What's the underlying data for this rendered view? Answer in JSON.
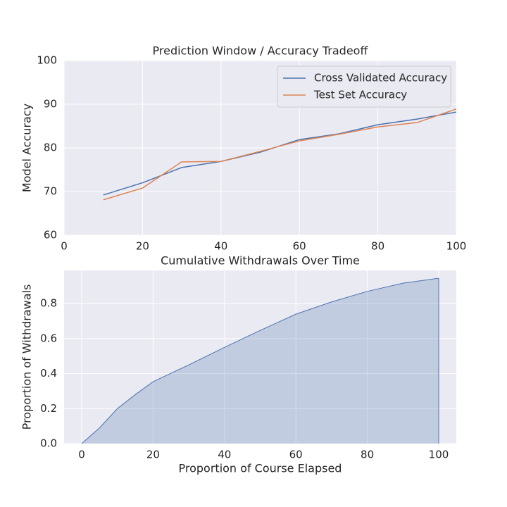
{
  "chart_data": [
    {
      "type": "line",
      "title": "Prediction Window / Accuracy Tradeoff",
      "y_label": "Model Accuracy",
      "x": [
        10,
        20,
        30,
        40,
        50,
        60,
        70,
        80,
        90,
        100
      ],
      "series": [
        {
          "name": "Cross Validated Accuracy",
          "color": "#4c72b0",
          "values": [
            69.2,
            72,
            75.5,
            76.9,
            79.0,
            81.9,
            83.2,
            85.3,
            86.6,
            88.2
          ]
        },
        {
          "name": "Test Set Accuracy",
          "color": "#dd8452",
          "values": [
            68.1,
            70.8,
            76.8,
            76.9,
            79.2,
            81.6,
            83.1,
            84.8,
            85.8,
            88.9
          ]
        }
      ],
      "xlim": [
        0,
        100
      ],
      "xticks": [
        0,
        20,
        40,
        60,
        80,
        100
      ],
      "ylim": [
        60,
        100
      ],
      "yticks": [
        60,
        70,
        80,
        90,
        100
      ],
      "grid": true,
      "legend": "upper-right"
    },
    {
      "type": "area",
      "title": "Cumulative Withdrawals Over Time",
      "x_label": "Proportion of Course Elapsed",
      "y_label": "Proportion of Withdrawals",
      "x": [
        0,
        5,
        10,
        15,
        20,
        30,
        40,
        50,
        60,
        70,
        80,
        90,
        100
      ],
      "series": [
        {
          "color": "#4c72b0",
          "values": [
            0,
            0.09,
            0.2,
            0.28,
            0.354,
            0.45,
            0.55,
            0.647,
            0.74,
            0.81,
            0.87,
            0.917,
            0.945
          ]
        }
      ],
      "xlim": [
        -4.93,
        104.93
      ],
      "xticks": [
        0,
        20,
        40,
        60,
        80,
        100
      ],
      "ylim": [
        0,
        0.99
      ],
      "yticks": [
        {
          "value": 0,
          "label": "0.0"
        },
        0.2,
        0.4,
        0.6,
        0.8
      ],
      "grid": true
    }
  ]
}
